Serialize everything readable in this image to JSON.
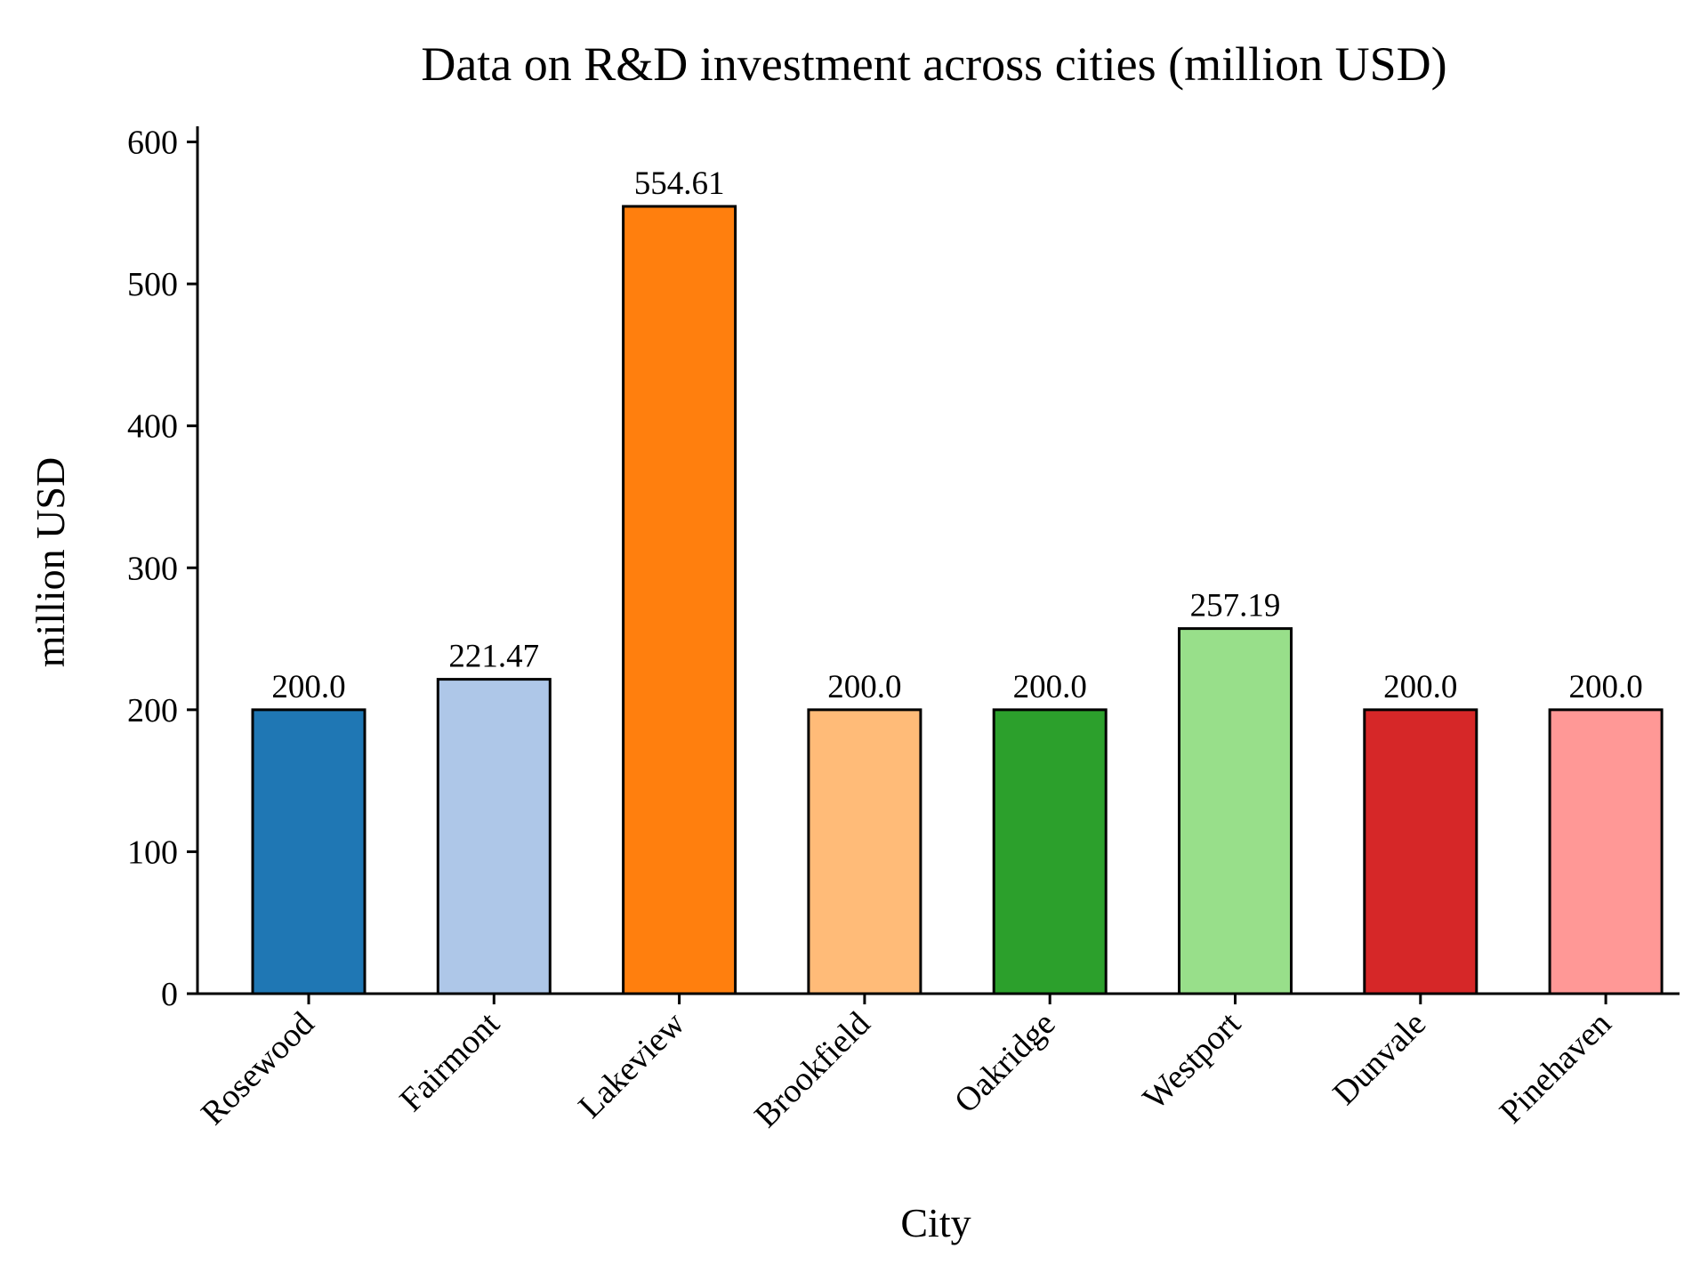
{
  "chart_data": {
    "type": "bar",
    "title": "Data on R&D investment across cities (million USD)",
    "xlabel": "City",
    "ylabel": "million USD",
    "categories": [
      "Rosewood",
      "Fairmont",
      "Lakeview",
      "Brookfield",
      "Oakridge",
      "Westport",
      "Dunvale",
      "Pinehaven"
    ],
    "values": [
      200.0,
      221.47,
      554.61,
      200.0,
      200.0,
      257.19,
      200.0,
      200.0
    ],
    "value_labels": [
      "200.0",
      "221.47",
      "554.61",
      "200.0",
      "200.0",
      "257.19",
      "200.0",
      "200.0"
    ],
    "colors": [
      "#1f77b4",
      "#aec7e8",
      "#ff7f0e",
      "#ffbb78",
      "#2ca02c",
      "#98df8a",
      "#d62728",
      "#ff9896"
    ],
    "edge_color": "#000000",
    "ylim": [
      0,
      611
    ],
    "yticks": [
      0,
      100,
      200,
      300,
      400,
      500,
      600
    ],
    "ytick_labels": [
      "0",
      "100",
      "200",
      "300",
      "400",
      "500",
      "600"
    ],
    "grid": false,
    "legend": "none"
  }
}
